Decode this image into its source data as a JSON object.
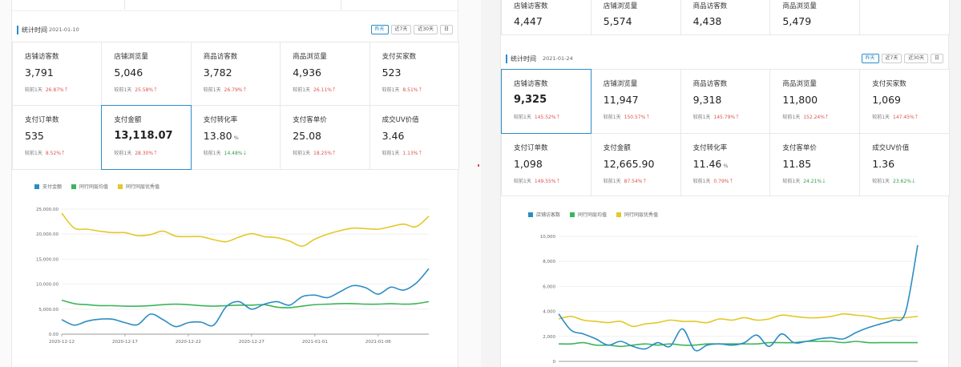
{
  "left": {
    "date_label": "统计时间",
    "date_value": "2021-01-10",
    "range_buttons": [
      "昨天",
      "近7天",
      "近30天",
      "日"
    ],
    "active_range": 0,
    "metric_rows": [
      [
        {
          "title": "店铺访客数",
          "value": "3,791",
          "cmp_label": "较前1天",
          "pct": "26.87%",
          "dir": "up"
        },
        {
          "title": "店铺浏览量",
          "value": "5,046",
          "cmp_label": "较前1天",
          "pct": "25.58%",
          "dir": "up"
        },
        {
          "title": "商品访客数",
          "value": "3,782",
          "cmp_label": "较前1天",
          "pct": "26.79%",
          "dir": "up"
        },
        {
          "title": "商品浏览量",
          "value": "4,936",
          "cmp_label": "较前1天",
          "pct": "26.11%",
          "dir": "up"
        },
        {
          "title": "支付买家数",
          "value": "523",
          "cmp_label": "较前1天",
          "pct": "8.51%",
          "dir": "up"
        }
      ],
      [
        {
          "title": "支付订单数",
          "value": "535",
          "cmp_label": "较前1天",
          "pct": "8.52%",
          "dir": "up"
        },
        {
          "title": "支付金额",
          "value": "13,118.07",
          "cmp_label": "较前1天",
          "pct": "28.30%",
          "dir": "up",
          "selected": true
        },
        {
          "title": "支付转化率",
          "value": "13.80",
          "unit": "%",
          "cmp_label": "较前1天",
          "pct": "14.48%",
          "dir": "down"
        },
        {
          "title": "支付客单价",
          "value": "25.08",
          "cmp_label": "较前1天",
          "pct": "18.25%",
          "dir": "up"
        },
        {
          "title": "成交UV价值",
          "value": "3.46",
          "cmp_label": "较前1天",
          "pct": "1.13%",
          "dir": "up"
        }
      ]
    ],
    "legend": [
      {
        "name": "支付金额",
        "color": "#2c8cc4"
      },
      {
        "name": "同行同层均值",
        "color": "#3cb55a"
      },
      {
        "name": "同行同层优秀值",
        "color": "#e3c829"
      }
    ]
  },
  "right": {
    "top_metrics": [
      {
        "title": "店铺访客数",
        "value": "4,447"
      },
      {
        "title": "店铺浏览量",
        "value": "5,574"
      },
      {
        "title": "商品访客数",
        "value": "4,438"
      },
      {
        "title": "商品浏览量",
        "value": "5,479"
      }
    ],
    "date_label": "统计时间",
    "date_value": "2021-01-24",
    "range_buttons": [
      "昨天",
      "近7天",
      "近30天",
      "日"
    ],
    "active_range": 0,
    "metric_rows": [
      [
        {
          "title": "店铺访客数",
          "value": "9,325",
          "cmp_label": "较前1天",
          "pct": "145.52%",
          "dir": "up",
          "selected": true
        },
        {
          "title": "店铺浏览量",
          "value": "11,947",
          "cmp_label": "较前1天",
          "pct": "150.57%",
          "dir": "up"
        },
        {
          "title": "商品访客数",
          "value": "9,318",
          "cmp_label": "较前1天",
          "pct": "145.79%",
          "dir": "up"
        },
        {
          "title": "商品浏览量",
          "value": "11,800",
          "cmp_label": "较前1天",
          "pct": "152.24%",
          "dir": "up"
        },
        {
          "title": "支付买家数",
          "value": "1,069",
          "cmp_label": "较前1天",
          "pct": "147.45%",
          "dir": "up"
        }
      ],
      [
        {
          "title": "支付订单数",
          "value": "1,098",
          "cmp_label": "较前1天",
          "pct": "149.55%",
          "dir": "up"
        },
        {
          "title": "支付金额",
          "value": "12,665.90",
          "cmp_label": "较前1天",
          "pct": "87.54%",
          "dir": "up"
        },
        {
          "title": "支付转化率",
          "value": "11.46",
          "unit": "%",
          "cmp_label": "较前1天",
          "pct": "0.79%",
          "dir": "up"
        },
        {
          "title": "支付客单价",
          "value": "11.85",
          "cmp_label": "较前1天",
          "pct": "24.21%",
          "dir": "down"
        },
        {
          "title": "成交UV价值",
          "value": "1.36",
          "cmp_label": "较前1天",
          "pct": "23.62%",
          "dir": "down"
        }
      ]
    ],
    "legend": [
      {
        "name": "店铺访客数",
        "color": "#2c8cc4"
      },
      {
        "name": "同行同层均值",
        "color": "#3cb55a"
      },
      {
        "name": "同行同层优秀值",
        "color": "#e3c829"
      }
    ]
  },
  "chart_data": [
    {
      "type": "line",
      "title": "",
      "xlabel": "",
      "ylabel": "",
      "ylim": [
        0,
        25000
      ],
      "y_ticks": [
        "0.00",
        "5,000.00",
        "10,000.00",
        "15,000.00",
        "20,000.00",
        "25,000.00"
      ],
      "x_ticks": [
        "2020-12-12",
        "2020-12-17",
        "2020-12-22",
        "2020-12-27",
        "2021-01-01",
        "2021-01-06"
      ],
      "x": [
        "2020-12-12",
        "2020-12-13",
        "2020-12-14",
        "2020-12-15",
        "2020-12-16",
        "2020-12-17",
        "2020-12-18",
        "2020-12-19",
        "2020-12-20",
        "2020-12-21",
        "2020-12-22",
        "2020-12-23",
        "2020-12-24",
        "2020-12-25",
        "2020-12-26",
        "2020-12-27",
        "2020-12-28",
        "2020-12-29",
        "2020-12-30",
        "2020-12-31",
        "2021-01-01",
        "2021-01-02",
        "2021-01-03",
        "2021-01-04",
        "2021-01-05",
        "2021-01-06",
        "2021-01-07",
        "2021-01-08",
        "2021-01-09",
        "2021-01-10"
      ],
      "series": [
        {
          "name": "支付金额",
          "color": "#2c8cc4",
          "values": [
            2900,
            1800,
            2600,
            3000,
            3000,
            2300,
            1900,
            4000,
            2900,
            1500,
            2300,
            2400,
            1800,
            5500,
            6500,
            5000,
            6000,
            6500,
            5800,
            7500,
            7800,
            7300,
            8500,
            9700,
            9300,
            8000,
            9400,
            8800,
            10200,
            13100
          ]
        },
        {
          "name": "同行同层均值",
          "color": "#3cb55a",
          "values": [
            6800,
            6100,
            5900,
            5700,
            5700,
            5600,
            5600,
            5700,
            5900,
            6000,
            5900,
            5700,
            5600,
            5700,
            5800,
            5800,
            5900,
            5400,
            5300,
            5600,
            5900,
            6000,
            6100,
            6100,
            6000,
            6000,
            6100,
            6000,
            6100,
            6500
          ]
        },
        {
          "name": "同行同层优秀值",
          "color": "#e3c829",
          "values": [
            24200,
            21200,
            21000,
            20600,
            20300,
            20300,
            19700,
            19900,
            20600,
            19600,
            19500,
            19500,
            18900,
            18500,
            19400,
            20100,
            19500,
            19300,
            18600,
            17600,
            19000,
            20000,
            20700,
            21200,
            21100,
            21000,
            21500,
            22000,
            21500,
            23600
          ]
        }
      ]
    },
    {
      "type": "line",
      "title": "",
      "xlabel": "",
      "ylabel": "",
      "ylim": [
        0,
        10000
      ],
      "y_ticks": [
        "0",
        "2,000",
        "4,000",
        "6,000",
        "8,000",
        "10,000"
      ],
      "x": [
        1,
        2,
        3,
        4,
        5,
        6,
        7,
        8,
        9,
        10,
        11,
        12,
        13,
        14,
        15,
        16,
        17,
        18,
        19,
        20,
        21,
        22,
        23,
        24,
        25,
        26,
        27,
        28,
        29,
        30
      ],
      "series": [
        {
          "name": "店铺访客数",
          "color": "#2c8cc4",
          "values": [
            3800,
            2500,
            2200,
            1800,
            1300,
            1600,
            1200,
            1000,
            1500,
            1200,
            2600,
            900,
            1300,
            1400,
            1300,
            1500,
            2100,
            1200,
            2200,
            1500,
            1600,
            1800,
            1900,
            1800,
            2300,
            2700,
            3000,
            3300,
            3900,
            9300
          ]
        },
        {
          "name": "同行同层均值",
          "color": "#3cb55a",
          "values": [
            1400,
            1400,
            1500,
            1300,
            1300,
            1200,
            1300,
            1400,
            1300,
            1400,
            1300,
            1300,
            1400,
            1400,
            1400,
            1400,
            1400,
            1500,
            1500,
            1500,
            1600,
            1600,
            1600,
            1500,
            1600,
            1500,
            1500,
            1500,
            1500,
            1500
          ]
        },
        {
          "name": "同行同层优秀值",
          "color": "#e3c829",
          "values": [
            3400,
            3600,
            3300,
            3200,
            3100,
            3200,
            2800,
            3000,
            3100,
            3300,
            3200,
            3200,
            3100,
            3400,
            3300,
            3500,
            3300,
            3400,
            3700,
            3600,
            3500,
            3500,
            3600,
            3800,
            3700,
            3600,
            3400,
            3500,
            3500,
            3600
          ]
        }
      ]
    }
  ]
}
